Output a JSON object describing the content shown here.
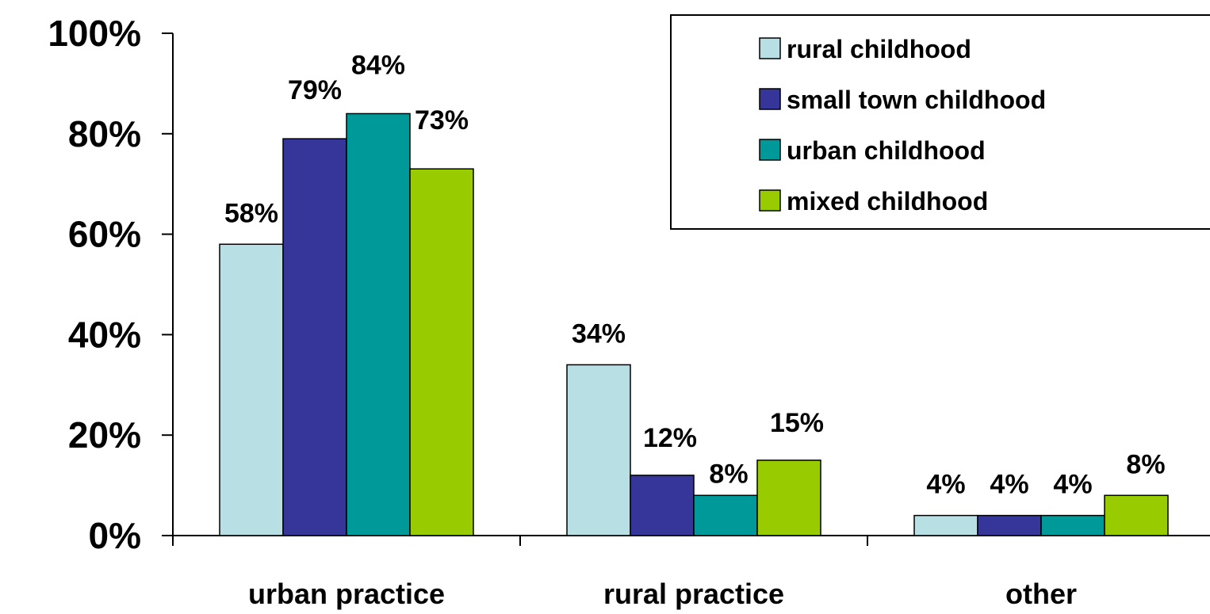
{
  "chart_data": {
    "type": "bar",
    "categories": [
      "urban practice",
      "rural practice",
      "other"
    ],
    "series": [
      {
        "name": "rural childhood",
        "color": "#b8e0e4",
        "values": [
          58,
          34,
          4
        ],
        "labels": [
          "58%",
          "34%",
          "4%"
        ]
      },
      {
        "name": "small town childhood",
        "color": "#35359a",
        "values": [
          79,
          12,
          4
        ],
        "labels": [
          "79%",
          "12%",
          "4%"
        ]
      },
      {
        "name": "urban childhood",
        "color": "#009999",
        "values": [
          84,
          8,
          4
        ],
        "labels": [
          "84%",
          "8%",
          "4%"
        ]
      },
      {
        "name": "mixed childhood",
        "color": "#99cc00",
        "values": [
          73,
          15,
          8
        ],
        "labels": [
          "73%",
          "15%",
          "8%"
        ]
      }
    ],
    "yticks": [
      "0%",
      "20%",
      "40%",
      "60%",
      "80%",
      "100%"
    ],
    "ylim": [
      0,
      100
    ],
    "grid": false,
    "legend_position": "top-right",
    "title": "",
    "xlabel": "",
    "ylabel": ""
  }
}
